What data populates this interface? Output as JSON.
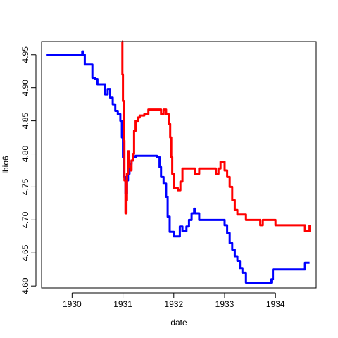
{
  "chart_data": {
    "type": "line",
    "title": "",
    "xlabel": "date",
    "ylabel": "lbio6",
    "x_ticks": [
      "1930",
      "1931",
      "1932",
      "1933",
      "1934"
    ],
    "y_ticks": [
      "4.60",
      "4.65",
      "4.70",
      "4.75",
      "4.80",
      "4.85",
      "4.90",
      "4.95"
    ],
    "xlim": [
      1929.4,
      1934.8
    ],
    "ylim": [
      4.597,
      4.97
    ],
    "grid": false,
    "legend": "none",
    "series": [
      {
        "color": "#0000ff",
        "step": true,
        "x": [
          1929.5,
          1929.58,
          1929.67,
          1929.75,
          1929.83,
          1929.92,
          1930.0,
          1930.08,
          1930.17,
          1930.2,
          1930.22,
          1930.25,
          1930.33,
          1930.4,
          1930.45,
          1930.5,
          1930.58,
          1930.65,
          1930.7,
          1930.75,
          1930.8,
          1930.85,
          1930.9,
          1930.95,
          1930.98,
          1931.0,
          1931.02,
          1931.05,
          1931.08,
          1931.1,
          1931.13,
          1931.17,
          1931.2,
          1931.25,
          1931.33,
          1931.42,
          1931.5,
          1931.58,
          1931.67,
          1931.72,
          1931.75,
          1931.8,
          1931.85,
          1931.88,
          1931.92,
          1932.0,
          1932.08,
          1932.12,
          1932.17,
          1932.25,
          1932.3,
          1932.35,
          1932.4,
          1932.42,
          1932.45,
          1932.5,
          1932.58,
          1932.67,
          1932.75,
          1932.83,
          1932.92,
          1933.0,
          1933.05,
          1933.1,
          1933.15,
          1933.2,
          1933.25,
          1933.3,
          1933.35,
          1933.42,
          1933.5,
          1933.58,
          1933.67,
          1933.75,
          1933.83,
          1933.92,
          1933.95,
          1934.0,
          1934.08,
          1934.17,
          1934.25,
          1934.33,
          1934.42,
          1934.5,
          1934.58,
          1934.67
        ],
        "y": [
          4.95,
          4.95,
          4.95,
          4.95,
          4.95,
          4.95,
          4.95,
          4.95,
          4.95,
          4.955,
          4.95,
          4.935,
          4.935,
          4.915,
          4.913,
          4.905,
          4.905,
          4.89,
          4.898,
          4.885,
          4.875,
          4.865,
          4.86,
          4.85,
          4.825,
          4.795,
          4.765,
          4.74,
          4.76,
          4.77,
          4.785,
          4.79,
          4.795,
          4.797,
          4.797,
          4.797,
          4.797,
          4.797,
          4.795,
          4.78,
          4.765,
          4.755,
          4.735,
          4.705,
          4.682,
          4.675,
          4.675,
          4.69,
          4.683,
          4.69,
          4.7,
          4.71,
          4.717,
          4.71,
          4.71,
          4.7,
          4.7,
          4.7,
          4.7,
          4.7,
          4.7,
          4.692,
          4.68,
          4.665,
          4.655,
          4.645,
          4.638,
          4.627,
          4.62,
          4.605,
          4.605,
          4.605,
          4.605,
          4.605,
          4.605,
          4.61,
          4.625,
          4.625,
          4.625,
          4.625,
          4.625,
          4.625,
          4.625,
          4.625,
          4.635,
          4.635
        ]
      },
      {
        "color": "#ff0000",
        "step": true,
        "x": [
          1930.98,
          1930.99,
          1931.0,
          1931.02,
          1931.03,
          1931.05,
          1931.07,
          1931.08,
          1931.1,
          1931.12,
          1931.15,
          1931.17,
          1931.2,
          1931.22,
          1931.25,
          1931.3,
          1931.33,
          1931.42,
          1931.5,
          1931.58,
          1931.67,
          1931.75,
          1931.8,
          1931.85,
          1931.9,
          1931.93,
          1931.95,
          1931.97,
          1932.0,
          1932.08,
          1932.13,
          1932.17,
          1932.25,
          1932.33,
          1932.42,
          1932.5,
          1932.58,
          1932.67,
          1932.75,
          1932.83,
          1932.88,
          1932.92,
          1933.0,
          1933.05,
          1933.1,
          1933.15,
          1933.2,
          1933.25,
          1933.33,
          1933.42,
          1933.5,
          1933.58,
          1933.67,
          1933.7,
          1933.75,
          1933.83,
          1933.92,
          1934.0,
          1934.08,
          1934.17,
          1934.25,
          1934.33,
          1934.42,
          1934.5,
          1934.58,
          1934.67
        ],
        "y": [
          4.97,
          4.92,
          4.88,
          4.82,
          4.76,
          4.71,
          4.73,
          4.77,
          4.804,
          4.78,
          4.775,
          4.79,
          4.8,
          4.835,
          4.85,
          4.855,
          4.858,
          4.86,
          4.867,
          4.867,
          4.867,
          4.86,
          4.867,
          4.86,
          4.845,
          4.825,
          4.795,
          4.77,
          4.748,
          4.745,
          4.758,
          4.778,
          4.778,
          4.778,
          4.77,
          4.778,
          4.778,
          4.778,
          4.778,
          4.77,
          4.778,
          4.788,
          4.775,
          4.765,
          4.75,
          4.73,
          4.715,
          4.708,
          4.708,
          4.7,
          4.7,
          4.7,
          4.7,
          4.692,
          4.7,
          4.7,
          4.7,
          4.692,
          4.692,
          4.692,
          4.692,
          4.692,
          4.692,
          4.692,
          4.683,
          4.692
        ]
      }
    ]
  }
}
